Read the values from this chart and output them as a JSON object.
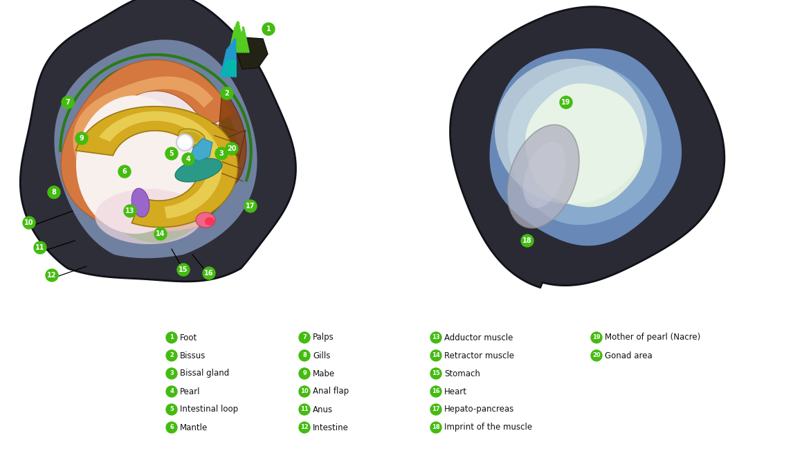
{
  "background_color": "#ffffff",
  "legend_items_col1": [
    {
      "num": "1",
      "label": "Foot"
    },
    {
      "num": "2",
      "label": "Bissus"
    },
    {
      "num": "3",
      "label": "Bissal gland"
    },
    {
      "num": "4",
      "label": "Pearl"
    },
    {
      "num": "5",
      "label": "Intestinal loop"
    },
    {
      "num": "6",
      "label": "Mantle"
    }
  ],
  "legend_items_col2": [
    {
      "num": "7",
      "label": "Palps"
    },
    {
      "num": "8",
      "label": "Gills"
    },
    {
      "num": "9",
      "label": "Mabe"
    },
    {
      "num": "10",
      "label": "Anal flap"
    },
    {
      "num": "11",
      "label": "Anus"
    },
    {
      "num": "12",
      "label": "Intestine"
    }
  ],
  "legend_items_col3": [
    {
      "num": "13",
      "label": "Adductor muscle"
    },
    {
      "num": "14",
      "label": "Retractor muscle"
    },
    {
      "num": "15",
      "label": "Stomach"
    },
    {
      "num": "16",
      "label": "Heart"
    },
    {
      "num": "17",
      "label": "Hepato-pancreas"
    },
    {
      "num": "18",
      "label": "Imprint of the muscle"
    }
  ],
  "legend_items_col4": [
    {
      "num": "19",
      "label": "Mother of pearl (Nacre)"
    },
    {
      "num": "20",
      "label": "Gonad area"
    }
  ]
}
